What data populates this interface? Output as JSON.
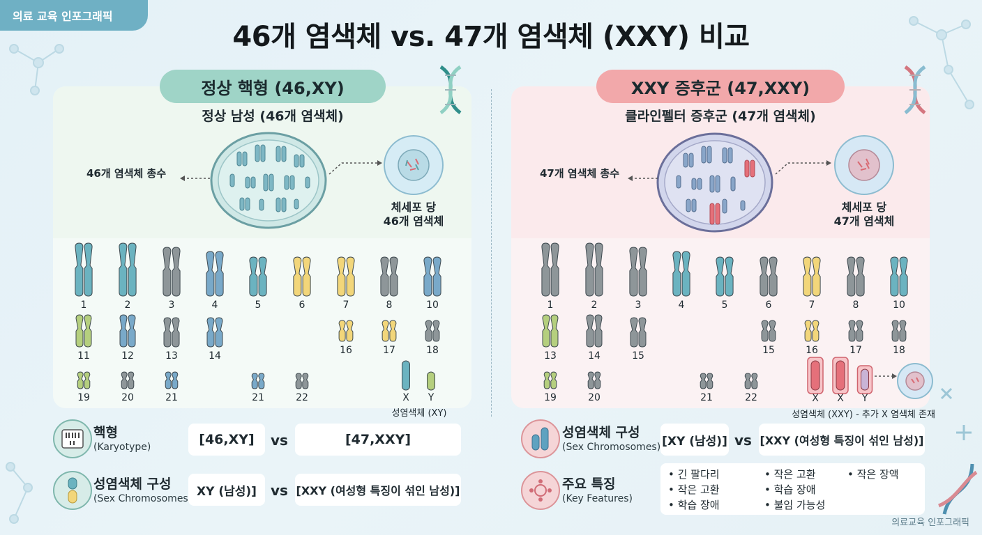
{
  "badge": "의료 교육 인포그래픽",
  "title": "46개 염색체 vs. 47개 염색체 (XXY) 비교",
  "left": {
    "pill": "정상 핵형 (46,XY)",
    "subtitle": "정상 남성 (46개 염색체)",
    "total_label": "46개 염색체 총수",
    "cell_label_1": "체세포 당",
    "cell_label_2": "46개 염색체",
    "numbers": [
      "1",
      "2",
      "3",
      "4",
      "5",
      "6",
      "7",
      "8",
      "10",
      "11",
      "12",
      "13",
      "14",
      "16",
      "17",
      "18",
      "19",
      "20",
      "21",
      "21",
      "22"
    ],
    "sex_x": "X",
    "sex_y": "Y",
    "sex_caption": "성염색체 (XY)"
  },
  "right": {
    "pill": "XXY 증후군 (47,XXY)",
    "subtitle": "클라인펠터 증후군 (47개 염색체)",
    "total_label": "47개 염색체 총수",
    "cell_label_1": "체세포 당",
    "cell_label_2": "47개 염색체",
    "numbers": [
      "1",
      "2",
      "3",
      "4",
      "5",
      "6",
      "7",
      "8",
      "10",
      "15",
      "16",
      "17",
      "18",
      "13",
      "14",
      "15",
      "19",
      "20",
      "21",
      "22"
    ],
    "sex_x1": "X",
    "sex_x2": "X",
    "sex_y": "Y",
    "sex_caption": "성염색체 (XXY) - 추가 X 염색체 존재"
  },
  "bottom_left": {
    "row1_title": "핵형",
    "row1_sub": "(Karyotype)",
    "row1_a": "[46,XY]",
    "row1_vs": "vs",
    "row1_b": "[47,XXY]",
    "row2_title": "성염색체 구성",
    "row2_sub": "(Sex Chromosomes)",
    "row2_a": "XY (남성)]",
    "row2_vs": "vs",
    "row2_b": "[XXY (여성형 특징이 섞인 남성)]"
  },
  "bottom_right": {
    "row1_title": "성염색체 구성",
    "row1_sub": "(Sex Chromosomes)",
    "row1_a": "[XY (남성)]",
    "row1_vs": "vs",
    "row1_b": "[XXY (여성형 특징이 섞인 남성)]",
    "row2_title": "주요 특징",
    "row2_sub": "(Key Features)",
    "features_col1": [
      "• 긴 팔다리",
      "• 작은 고환",
      "• 학습 장애"
    ],
    "features_col2": [
      "• 작은 고환",
      "• 학습 장애",
      "• 불임 가능성"
    ],
    "features_col3": [
      "• 작은 장액"
    ]
  },
  "footer": "의료교육 인포그래픽",
  "colors": {
    "teal": "#6bb3c0",
    "green": "#9fd4c7",
    "pink": "#f2a8aa",
    "red": "#e5707a",
    "gray": "#8e9699",
    "yellow": "#f2d67a",
    "olive": "#b5cf7e",
    "blue": "#79a9c9"
  }
}
